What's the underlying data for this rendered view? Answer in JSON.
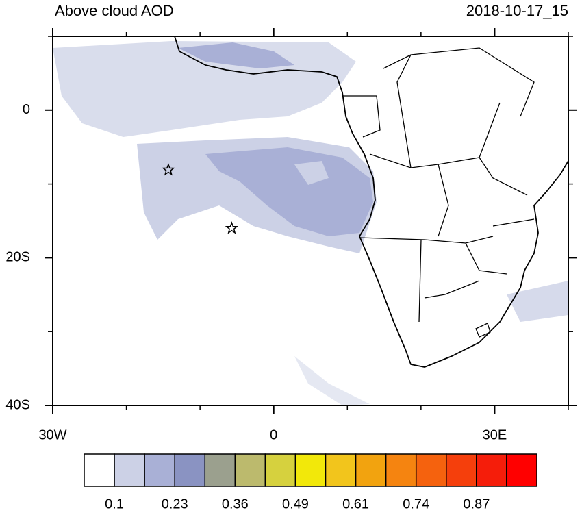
{
  "map": {
    "title": "Above cloud AOD",
    "time_label": "2018-10-17_15",
    "lonlim": [
      -30,
      40
    ],
    "latlim": [
      -40,
      10
    ],
    "lon_ticks": [
      {
        "value": -30,
        "label": "30W"
      },
      0,
      {
        "value": 30,
        "label": "30E"
      }
    ],
    "lat_ticks": [
      0,
      {
        "value": -20,
        "label": "20S"
      },
      {
        "value": -40,
        "label": "40S"
      }
    ],
    "lon_minor_ticks": [
      -20,
      -10,
      10,
      20,
      40
    ],
    "lat_minor_ticks": [
      10,
      -10,
      -30
    ],
    "markers": [
      {
        "lon": -14.3,
        "lat": -8.1
      },
      {
        "lon": -5.7,
        "lat": -16
      }
    ],
    "colorbar": {
      "colors": [
        "#ffffff",
        "#ccd1e6",
        "#a9b0d6",
        "#8a93c2",
        "#9ba08e",
        "#bcba6d",
        "#d6d13e",
        "#f2e80a",
        "#f2c51c",
        "#f2a30f",
        "#f58410",
        "#f5620e",
        "#f53f0c",
        "#f51d0a",
        "#ff0000"
      ],
      "labels": [
        0.1,
        0.23,
        0.36,
        0.49,
        0.61,
        0.74,
        0.87
      ]
    }
  }
}
